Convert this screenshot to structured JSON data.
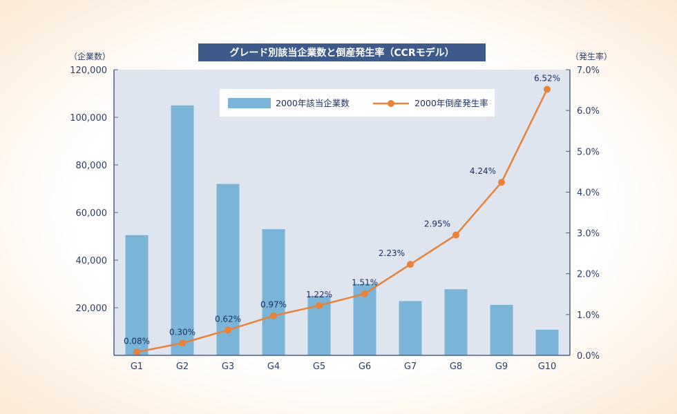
{
  "chart_data": {
    "type": "bar+line",
    "title": "グレード別該当企業数と倒産発生率（CCRモデル）",
    "categories": [
      "G1",
      "G2",
      "G3",
      "G4",
      "G5",
      "G6",
      "G7",
      "G8",
      "G9",
      "G10"
    ],
    "series": [
      {
        "name": "2000年該当企業数",
        "type": "bar",
        "axis": "left",
        "values": [
          50500,
          105000,
          72000,
          53000,
          25000,
          30000,
          22800,
          27800,
          21200,
          10800
        ]
      },
      {
        "name": "2000年倒産発生率",
        "type": "line",
        "axis": "right",
        "values": [
          0.08,
          0.3,
          0.62,
          0.97,
          1.22,
          1.51,
          2.23,
          2.95,
          4.24,
          6.52
        ],
        "labels": [
          "0.08%",
          "0.30%",
          "0.62%",
          "0.97%",
          "1.22%",
          "1.51%",
          "2.23%",
          "2.95%",
          "4.24%",
          "6.52%"
        ]
      }
    ],
    "yleft": {
      "label": "（企業数）",
      "ylim": [
        0,
        120000
      ],
      "ticks": [
        "20,000",
        "40,000",
        "60,000",
        "80,000",
        "100,000",
        "120,000"
      ]
    },
    "yright": {
      "label": "（発生率）",
      "ylim": [
        0,
        7
      ],
      "ticks": [
        "0.0%",
        "1.0%",
        "2.0%",
        "3.0%",
        "4.0%",
        "5.0%",
        "6.0%",
        "7.0%"
      ]
    },
    "legend": "top-center",
    "grid": false,
    "colors": {
      "bar": "#7ab4d6",
      "line": "#e8823a",
      "plot_bg": "#dfe5ee",
      "axis": "#4a5f86",
      "title_bg": "#3d5a8a"
    }
  }
}
